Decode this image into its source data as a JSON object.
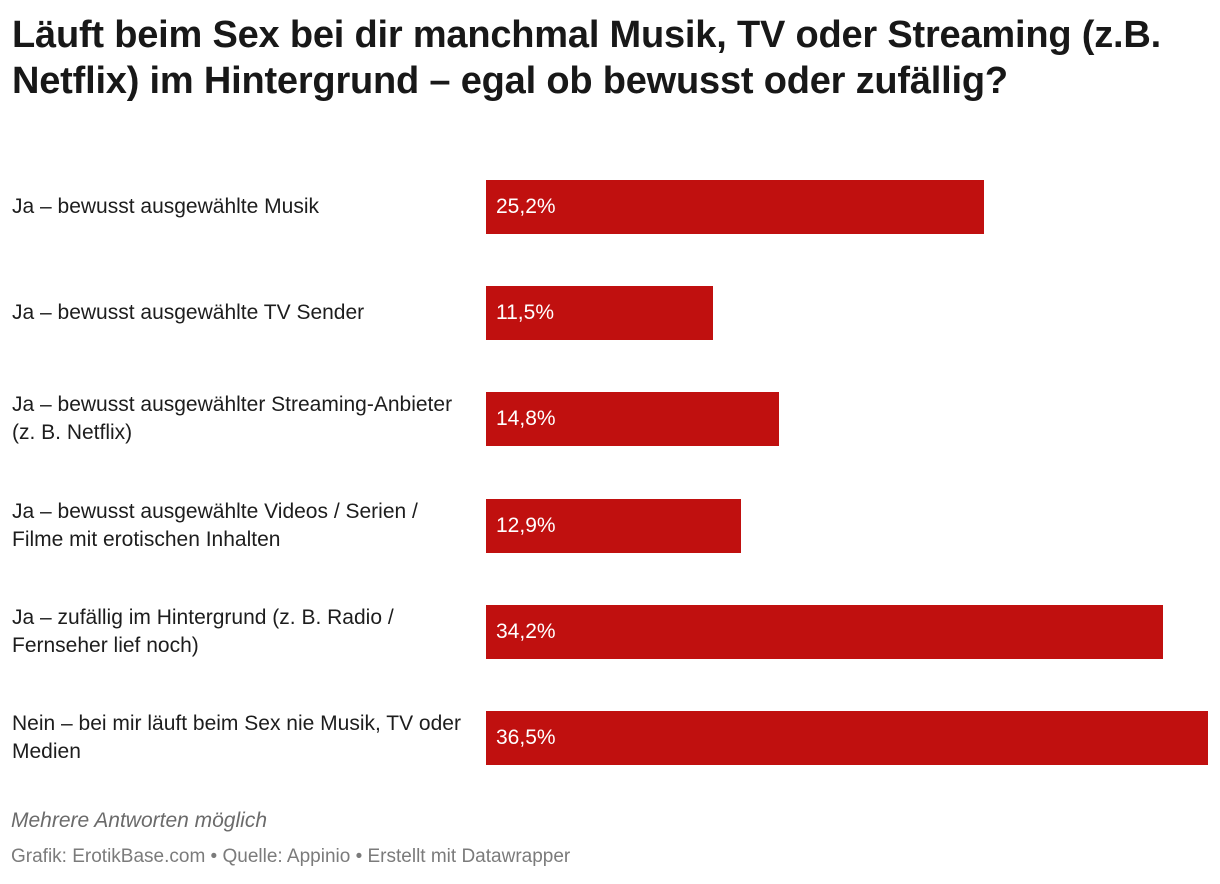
{
  "chart_data": {
    "type": "bar",
    "orientation": "horizontal",
    "title": "Läuft beim Sex bei dir manchmal Musik, TV oder Streaming (z.B. Netflix) im Hintergrund – egal ob bewusst oder zufällig?",
    "categories": [
      "Ja – bewusst ausgewählte Musik",
      "Ja – bewusst ausgewählte TV Sender",
      "Ja – bewusst ausgewählter Streaming-Anbieter (z. B. Netflix)",
      "Ja – bewusst ausgewählte Videos / Serien / Filme mit erotischen Inhalten",
      "Ja – zufällig im Hintergrund (z. B. Radio / Fernseher lief noch)",
      "Nein – bei mir läuft beim Sex nie Musik, TV oder Medien"
    ],
    "values": [
      25.2,
      11.5,
      14.8,
      12.9,
      34.2,
      36.5
    ],
    "value_labels": [
      "25,2%",
      "11,5%",
      "14,8%",
      "12,9%",
      "34,2%",
      "36,5%"
    ],
    "unit": "%",
    "xlim": [
      0,
      36.5
    ],
    "bar_color": "#c0100f",
    "value_label_color": "#ffffff",
    "grid": false
  },
  "notes": {
    "text": "Mehrere Antworten möglich"
  },
  "footer": {
    "text": "Grafik: ErotikBase.com • Quelle: Appinio • Erstellt mit Datawrapper"
  }
}
